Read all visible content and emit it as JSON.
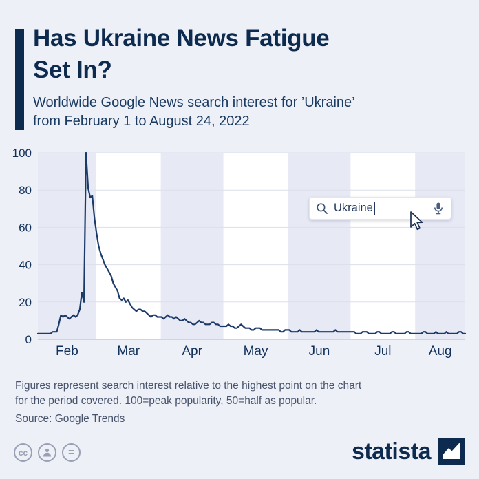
{
  "header": {
    "title_lines": [
      "Has Ukraine News Fatigue",
      "Set In?"
    ],
    "subtitle_lines": [
      "Worldwide Google News search interest for ’Ukraine’",
      "from February 1 to August 24, 2022"
    ],
    "accent_color": "#0d2b4e"
  },
  "search_overlay": {
    "query": "Ukraine"
  },
  "chart_data": {
    "type": "line",
    "title": "Worldwide Google News search interest for 'Ukraine', Feb 1 – Aug 24 2022",
    "months": [
      "Feb",
      "Mar",
      "Apr",
      "May",
      "Jun",
      "Jul",
      "Aug"
    ],
    "month_days": [
      28,
      31,
      30,
      31,
      30,
      31,
      24
    ],
    "y_ticks": [
      0,
      20,
      40,
      60,
      80,
      100
    ],
    "ylim": [
      0,
      100
    ],
    "line_color": "#1c3a68",
    "axis_color": "#12315a",
    "band_shade": "#e7eaf5",
    "band_white": "#ffffff",
    "grid_color": "#dcdfe9",
    "baseline_color": "#b3b8c9",
    "values": [
      3,
      3,
      3,
      3,
      3,
      3,
      3,
      4,
      4,
      4,
      8,
      13,
      12,
      13,
      12,
      11,
      12,
      13,
      12,
      13,
      16,
      25,
      20,
      100,
      81,
      76,
      77,
      65,
      57,
      50,
      46,
      43,
      40,
      38,
      36,
      34,
      30,
      28,
      26,
      22,
      21,
      22,
      20,
      21,
      19,
      17,
      16,
      15,
      16,
      16,
      15,
      15,
      14,
      13,
      12,
      13,
      13,
      12,
      12,
      12,
      11,
      12,
      13,
      12,
      12,
      11,
      12,
      11,
      10,
      10,
      11,
      10,
      9,
      9,
      8,
      8,
      9,
      10,
      9,
      9,
      8,
      8,
      8,
      9,
      9,
      8,
      8,
      7,
      7,
      7,
      7,
      8,
      7,
      7,
      6,
      6,
      7,
      8,
      7,
      6,
      6,
      6,
      5,
      5,
      6,
      6,
      6,
      5,
      5,
      5,
      5,
      5,
      5,
      5,
      5,
      5,
      4,
      4,
      5,
      5,
      5,
      4,
      4,
      4,
      4,
      5,
      4,
      4,
      4,
      4,
      4,
      4,
      4,
      5,
      4,
      4,
      4,
      4,
      4,
      4,
      4,
      4,
      5,
      4,
      4,
      4,
      4,
      4,
      4,
      4,
      4,
      4,
      3,
      3,
      3,
      4,
      4,
      4,
      3,
      3,
      3,
      3,
      4,
      4,
      3,
      3,
      3,
      3,
      3,
      4,
      4,
      3,
      3,
      3,
      3,
      3,
      4,
      4,
      3,
      3,
      3,
      3,
      3,
      3,
      4,
      4,
      3,
      3,
      3,
      3,
      4,
      3,
      3,
      3,
      3,
      4,
      3,
      3,
      3,
      3,
      3,
      4,
      4,
      3,
      3
    ]
  },
  "footer": {
    "note_lines": [
      "Figures represent search interest relative to the highest point on the chart",
      "for the period covered. 100=peak popularity, 50=half as popular."
    ],
    "source": "Source: Google Trends"
  },
  "brand": {
    "name": "statista",
    "color": "#0d2b4e"
  },
  "license": {
    "cc_label": "cc"
  }
}
